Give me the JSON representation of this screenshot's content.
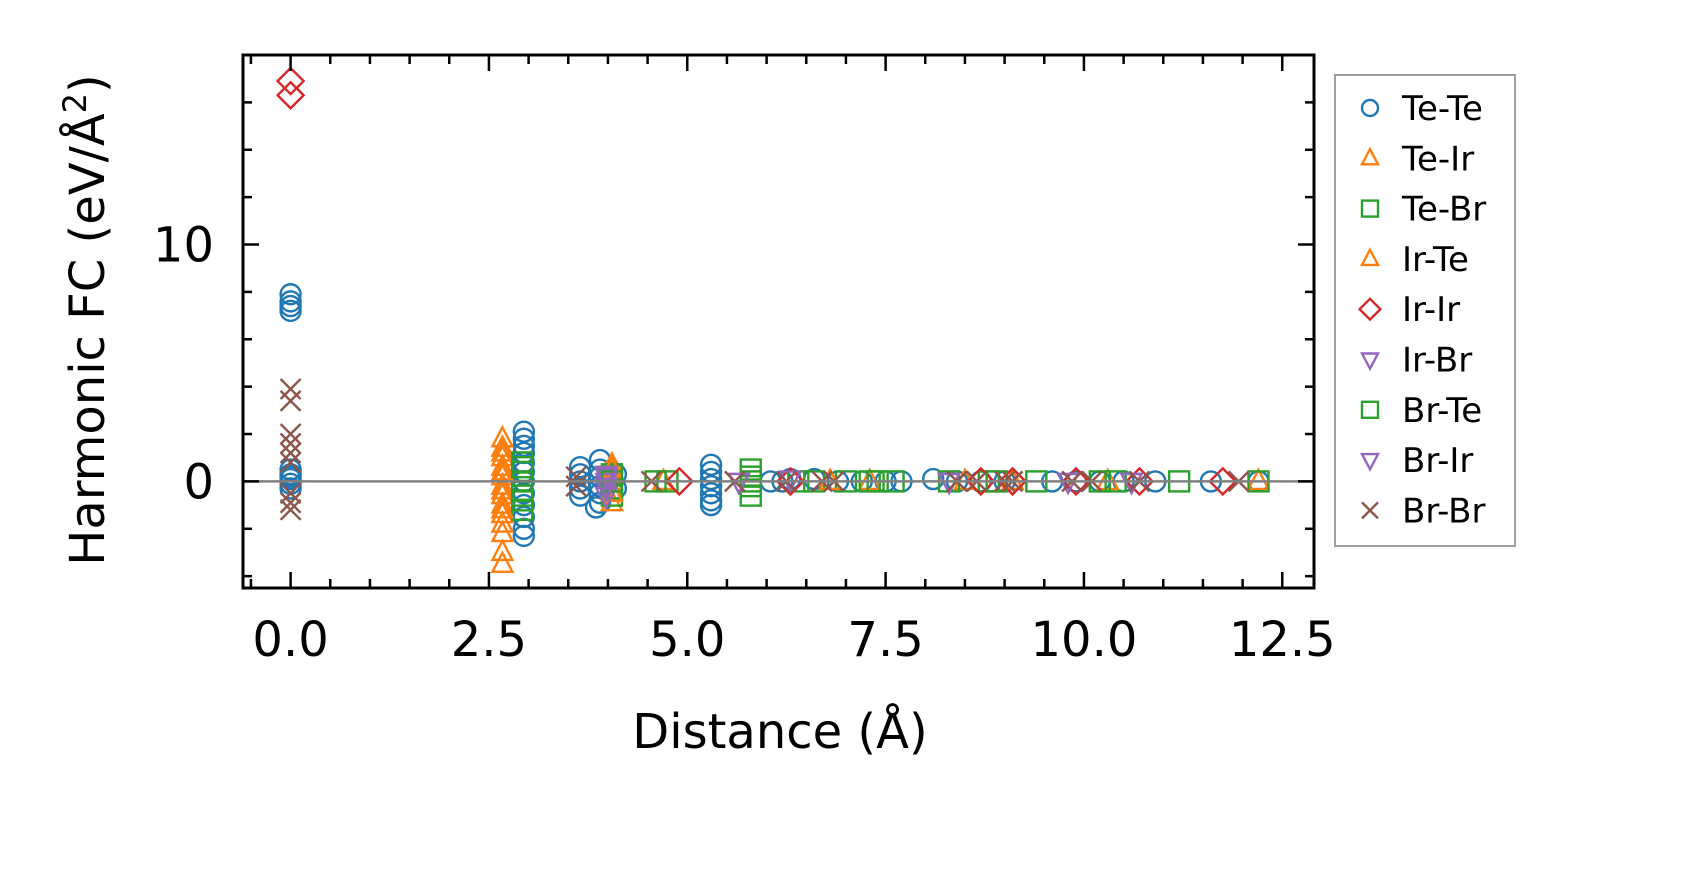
{
  "chart_data": {
    "type": "scatter",
    "xlabel": "Distance (Å)",
    "ylabel_main": "Harmonic FC (eV/Å",
    "ylabel_sup": "2",
    "ylabel_end": ")",
    "xlim": [
      -0.6,
      12.9
    ],
    "ylim": [
      -4.5,
      18
    ],
    "xticks": [
      0.0,
      2.5,
      5.0,
      7.5,
      10.0,
      12.5
    ],
    "xtick_labels": [
      "0.0",
      "2.5",
      "5.0",
      "7.5",
      "10.0",
      "12.5"
    ],
    "yticks": [
      0,
      10
    ],
    "ytick_labels": [
      "0",
      "10"
    ],
    "zero_line": true,
    "legend_position": "right-outside",
    "series": [
      {
        "name": "Te-Te",
        "marker": "circle",
        "color": "#1f77b4",
        "points": [
          [
            0,
            7.9
          ],
          [
            0,
            7.6
          ],
          [
            0,
            7.4
          ],
          [
            0,
            7.2
          ],
          [
            0,
            0.5
          ],
          [
            0,
            0.3
          ],
          [
            0,
            0.1
          ],
          [
            0,
            -0.1
          ],
          [
            0,
            -0.3
          ],
          [
            0,
            0.2
          ],
          [
            2.94,
            2.1
          ],
          [
            2.94,
            1.8
          ],
          [
            2.94,
            1.5
          ],
          [
            2.94,
            1.2
          ],
          [
            2.94,
            0.8
          ],
          [
            2.94,
            0.4
          ],
          [
            2.94,
            0
          ],
          [
            2.94,
            -0.5
          ],
          [
            2.94,
            -1.0
          ],
          [
            2.94,
            -1.5
          ],
          [
            2.94,
            -2.0
          ],
          [
            2.94,
            -2.3
          ],
          [
            3.65,
            0.6
          ],
          [
            3.65,
            0.3
          ],
          [
            3.65,
            0
          ],
          [
            3.65,
            -0.3
          ],
          [
            3.65,
            -0.6
          ],
          [
            3.9,
            0.9
          ],
          [
            3.9,
            0.5
          ],
          [
            3.9,
            0.2
          ],
          [
            3.9,
            -0.2
          ],
          [
            3.9,
            -0.5
          ],
          [
            3.9,
            -0.9
          ],
          [
            3.85,
            -1.1
          ],
          [
            4.1,
            0.3
          ],
          [
            4.1,
            -0.3
          ],
          [
            5.3,
            0.7
          ],
          [
            5.3,
            0.4
          ],
          [
            5.3,
            0.1
          ],
          [
            5.3,
            -0.2
          ],
          [
            5.3,
            -0.5
          ],
          [
            5.3,
            -0.8
          ],
          [
            5.3,
            -1.0
          ],
          [
            6.05,
            0
          ],
          [
            6.2,
            0
          ],
          [
            6.3,
            0.1
          ],
          [
            6.6,
            0.1
          ],
          [
            6.9,
            0
          ],
          [
            7.2,
            0
          ],
          [
            7.5,
            0
          ],
          [
            7.7,
            0
          ],
          [
            8.1,
            0.1
          ],
          [
            8.4,
            0
          ],
          [
            8.7,
            0
          ],
          [
            9.0,
            0
          ],
          [
            9.6,
            0
          ],
          [
            9.9,
            0
          ],
          [
            10.2,
            0
          ],
          [
            10.5,
            0
          ],
          [
            10.9,
            0
          ],
          [
            11.6,
            0
          ],
          [
            12.2,
            0
          ]
        ]
      },
      {
        "name": "Te-Ir",
        "marker": "triangle-up",
        "color": "#ff7f0e",
        "points": [
          [
            2.67,
            1.8
          ],
          [
            2.67,
            1.4
          ],
          [
            2.67,
            1.0
          ],
          [
            2.67,
            0.6
          ],
          [
            2.67,
            0.2
          ],
          [
            2.67,
            -0.2
          ],
          [
            2.67,
            -0.6
          ],
          [
            2.67,
            -1.0
          ],
          [
            2.67,
            -1.4
          ],
          [
            2.67,
            -1.8
          ],
          [
            2.67,
            -2.2
          ],
          [
            2.67,
            -3.0
          ],
          [
            2.67,
            -3.5
          ],
          [
            4.05,
            0.7
          ],
          [
            4.05,
            0.3
          ],
          [
            4.05,
            0
          ],
          [
            4.05,
            -0.4
          ],
          [
            4.05,
            -0.9
          ],
          [
            4.7,
            0
          ],
          [
            6.8,
            0
          ],
          [
            7.3,
            0
          ],
          [
            8.5,
            0
          ],
          [
            9.1,
            0
          ],
          [
            10.3,
            0
          ],
          [
            12.2,
            0
          ]
        ]
      },
      {
        "name": "Te-Br",
        "marker": "square",
        "color": "#2ca02c",
        "points": [
          [
            2.92,
            0.8
          ],
          [
            2.92,
            0.4
          ],
          [
            2.92,
            0
          ],
          [
            2.92,
            -0.4
          ],
          [
            2.92,
            -0.8
          ],
          [
            2.92,
            -1.2
          ],
          [
            4.05,
            0.3
          ],
          [
            4.05,
            -0.3
          ],
          [
            4.05,
            -0.6
          ],
          [
            4.6,
            0
          ],
          [
            4.75,
            0
          ],
          [
            5.8,
            0.5
          ],
          [
            5.8,
            0.2
          ],
          [
            5.8,
            -0.2
          ],
          [
            5.8,
            -0.6
          ],
          [
            6.4,
            0
          ],
          [
            6.6,
            0
          ],
          [
            7.0,
            0
          ],
          [
            7.3,
            0
          ],
          [
            7.6,
            0
          ],
          [
            8.3,
            0
          ],
          [
            8.8,
            0
          ],
          [
            9.4,
            0
          ],
          [
            10.2,
            0
          ],
          [
            11.2,
            0
          ],
          [
            12.2,
            0
          ]
        ]
      },
      {
        "name": "Ir-Te",
        "marker": "triangle-up",
        "color": "#ff7f0e",
        "points": [
          [
            2.67,
            1.2
          ],
          [
            2.67,
            0.4
          ],
          [
            2.67,
            -0.4
          ],
          [
            2.67,
            -1.2
          ],
          [
            4.05,
            0.5
          ],
          [
            4.05,
            -0.5
          ],
          [
            6.8,
            0
          ],
          [
            9.1,
            0
          ]
        ]
      },
      {
        "name": "Ir-Ir",
        "marker": "diamond",
        "color": "#d62728",
        "points": [
          [
            0,
            16.9
          ],
          [
            0,
            16.3
          ],
          [
            4.9,
            0
          ],
          [
            6.3,
            0
          ],
          [
            8.7,
            0
          ],
          [
            9.1,
            0
          ],
          [
            9.9,
            0
          ],
          [
            10.7,
            0
          ],
          [
            11.75,
            0
          ]
        ]
      },
      {
        "name": "Ir-Br",
        "marker": "triangle-down",
        "color": "#9467bd",
        "points": [
          [
            3.98,
            0.3
          ],
          [
            3.98,
            0
          ],
          [
            3.98,
            -0.3
          ],
          [
            3.98,
            -0.6
          ],
          [
            5.65,
            0
          ],
          [
            6.3,
            0.1
          ],
          [
            8.3,
            0
          ],
          [
            9.8,
            0
          ],
          [
            10.6,
            0
          ]
        ]
      },
      {
        "name": "Br-Te",
        "marker": "square",
        "color": "#2ca02c",
        "points": [
          [
            2.92,
            0.6
          ],
          [
            2.92,
            -0.6
          ],
          [
            4.05,
            0
          ],
          [
            5.8,
            0
          ],
          [
            7.4,
            0
          ],
          [
            8.9,
            0
          ],
          [
            10.4,
            0
          ]
        ]
      },
      {
        "name": "Br-Ir",
        "marker": "triangle-down",
        "color": "#9467bd",
        "points": [
          [
            3.98,
            0.2
          ],
          [
            3.98,
            -0.2
          ],
          [
            5.65,
            0
          ],
          [
            8.3,
            0
          ],
          [
            10.6,
            0
          ]
        ]
      },
      {
        "name": "Br-Br",
        "marker": "x",
        "color": "#8c564b",
        "points": [
          [
            0,
            3.9
          ],
          [
            0,
            3.4
          ],
          [
            0,
            2.0
          ],
          [
            0,
            1.6
          ],
          [
            0,
            1.2
          ],
          [
            0,
            0.8
          ],
          [
            0,
            -0.5
          ],
          [
            0,
            -0.9
          ],
          [
            0,
            -1.2
          ],
          [
            3.6,
            0.2
          ],
          [
            3.6,
            -0.2
          ],
          [
            4.55,
            0
          ],
          [
            5.6,
            0
          ],
          [
            6.25,
            0
          ],
          [
            6.7,
            0
          ],
          [
            6.85,
            0
          ],
          [
            8.4,
            0
          ],
          [
            8.65,
            0
          ],
          [
            9.0,
            0
          ],
          [
            9.1,
            0
          ],
          [
            9.85,
            0
          ],
          [
            10.1,
            0
          ],
          [
            10.7,
            0
          ],
          [
            11.95,
            0
          ]
        ]
      }
    ]
  }
}
